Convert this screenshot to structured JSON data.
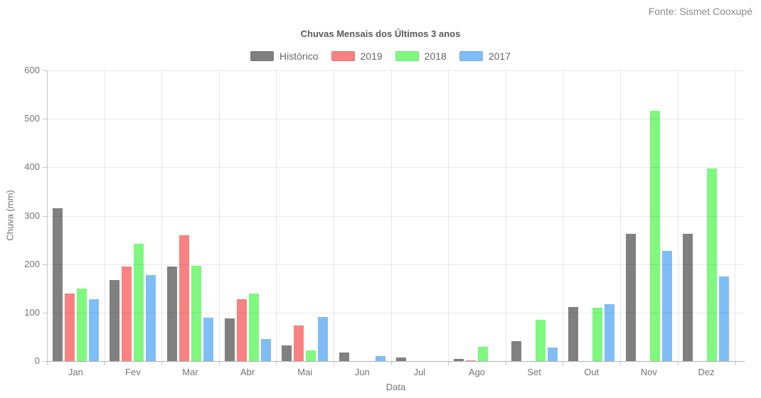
{
  "header": {
    "source": "Fonte: Sismet Cooxupé"
  },
  "chart_data": {
    "type": "bar",
    "title": "Chuvas Mensais dos Últimos 3 anos",
    "xlabel": "Data",
    "ylabel": "Chuva (mm)",
    "ylim": [
      0,
      600
    ],
    "ytick_step": 100,
    "yticks": [
      0,
      100,
      200,
      300,
      400,
      500,
      600
    ],
    "grid": true,
    "legend_position": "top",
    "categories": [
      "Jan",
      "Fev",
      "Mar",
      "Abr",
      "Mai",
      "Jun",
      "Jul",
      "Ago",
      "Set",
      "Out",
      "Nov",
      "Dez"
    ],
    "series": [
      {
        "name": "Histórico",
        "color": "#808080",
        "values": [
          315,
          167,
          195,
          88,
          33,
          17,
          8,
          5,
          41,
          111,
          262,
          263
        ]
      },
      {
        "name": "2019",
        "color": "#f98181",
        "values": [
          140,
          195,
          260,
          127,
          73,
          0,
          0,
          2,
          0,
          0,
          0,
          0
        ]
      },
      {
        "name": "2018",
        "color": "#7ef87e",
        "values": [
          150,
          242,
          196,
          140,
          22,
          0,
          0,
          29,
          85,
          110,
          517,
          398
        ]
      },
      {
        "name": "2017",
        "color": "#7fbdf7",
        "values": [
          128,
          178,
          90,
          45,
          91,
          11,
          0,
          0,
          28,
          118,
          228,
          175
        ]
      }
    ]
  }
}
